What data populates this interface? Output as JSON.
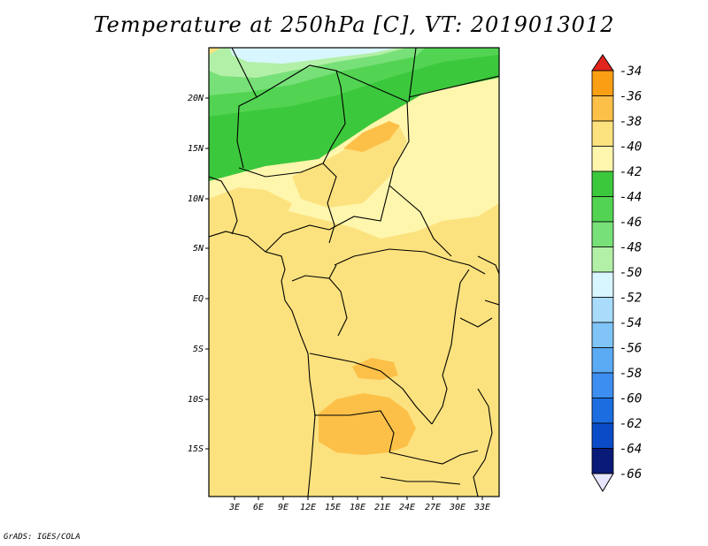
{
  "title": "Temperature at 250hPa [C], VT: 2019013012",
  "footer": "GrADS: IGES/COLA",
  "map": {
    "lat_labels": [
      "20N",
      "15N",
      "10N",
      "5N",
      "EQ",
      "5S",
      "10S",
      "15S"
    ],
    "lon_labels": [
      "3E",
      "6E",
      "9E",
      "12E",
      "15E",
      "18E",
      "21E",
      "24E",
      "27E",
      "30E",
      "33E"
    ],
    "regions": [
      {
        "name": "region-minus-52",
        "color": "#d8f6ff"
      },
      {
        "name": "region-minus-50",
        "color": "#b2f0a8"
      },
      {
        "name": "region-minus-48",
        "color": "#78e078"
      },
      {
        "name": "region-minus-46",
        "color": "#52d452"
      },
      {
        "name": "region-minus-44",
        "color": "#3cc83c"
      },
      {
        "name": "region-minus-42",
        "color": "#fff6ae"
      },
      {
        "name": "region-minus-40",
        "color": "#fce27e"
      },
      {
        "name": "region-minus-38",
        "color": "#fcc048"
      },
      {
        "name": "region-minus-36",
        "color": "#fa9e14"
      }
    ]
  },
  "colorbar": {
    "labels": [
      "-34",
      "-36",
      "-38",
      "-40",
      "-42",
      "-44",
      "-46",
      "-48",
      "-50",
      "-52",
      "-54",
      "-56",
      "-58",
      "-60",
      "-62",
      "-64",
      "-66"
    ],
    "colors": [
      "#fa5a00",
      "#fa9e14",
      "#fcc048",
      "#fce27e",
      "#fff6ae",
      "#3cc83c",
      "#52d452",
      "#78e078",
      "#b2f0a8",
      "#d8f6ff",
      "#a8dcfa",
      "#80c4f8",
      "#5aaaf4",
      "#3c8ef0",
      "#1c6ee0",
      "#0a4cc8",
      "#0a1a78"
    ],
    "low_tip_color": "#e6e6ff",
    "high_tip_color": "#e1241c"
  }
}
